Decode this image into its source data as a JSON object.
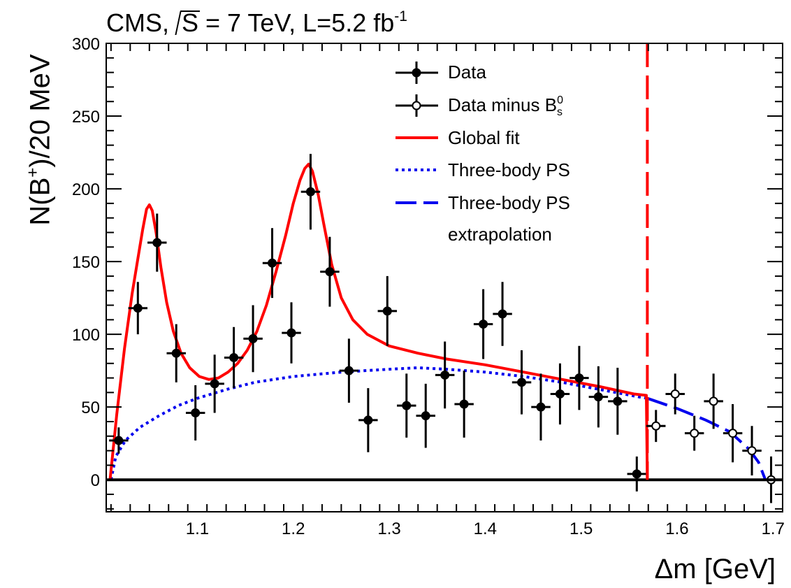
{
  "title": {
    "prefix": "CMS, ",
    "sqrt_arg": "S",
    "mid": " = 7 TeV, L=5.2 fb",
    "sup": "-1"
  },
  "ylabel": {
    "pre": "N(B",
    "sup": "+",
    "post": ")/20 MeV"
  },
  "xlabel": "Δm [GeV]",
  "legend": {
    "data": "Data",
    "data_minus": {
      "pre": "Data minus B",
      "sup": "0",
      "sub": "s"
    },
    "global_fit": "Global fit",
    "ps": "Three-body PS",
    "ps_extrap": "Three-body PS",
    "ps_extrap2": "extrapolation"
  },
  "colors": {
    "fit": "#ff0000",
    "ps": "#0000ee",
    "axis": "#000000"
  },
  "chart_data": {
    "type": "scatter",
    "xlim": [
      1.005,
      1.71
    ],
    "ylim": [
      -22,
      300
    ],
    "xticks": [
      "1.1",
      "1.2",
      "1.3",
      "1.4",
      "1.5",
      "1.6",
      "1.7"
    ],
    "yticks": [
      "0",
      "50",
      "100",
      "150",
      "200",
      "250",
      "300"
    ],
    "grid": false,
    "legend_position": "top-right",
    "threshold_line_x": 1.569,
    "data": [
      {
        "x": 1.018,
        "y": 27,
        "e": 9
      },
      {
        "x": 1.038,
        "y": 118,
        "e": 18
      },
      {
        "x": 1.058,
        "y": 163,
        "e": 20
      },
      {
        "x": 1.078,
        "y": 87,
        "e": 20
      },
      {
        "x": 1.098,
        "y": 46,
        "e": 19
      },
      {
        "x": 1.118,
        "y": 66,
        "e": 20
      },
      {
        "x": 1.138,
        "y": 84,
        "e": 21
      },
      {
        "x": 1.158,
        "y": 97,
        "e": 23
      },
      {
        "x": 1.178,
        "y": 149,
        "e": 24
      },
      {
        "x": 1.198,
        "y": 101,
        "e": 21
      },
      {
        "x": 1.218,
        "y": 198,
        "e": 26
      },
      {
        "x": 1.238,
        "y": 143,
        "e": 24
      },
      {
        "x": 1.258,
        "y": 75,
        "e": 22
      },
      {
        "x": 1.278,
        "y": 41,
        "e": 22
      },
      {
        "x": 1.298,
        "y": 116,
        "e": 24
      },
      {
        "x": 1.318,
        "y": 51,
        "e": 22
      },
      {
        "x": 1.338,
        "y": 44,
        "e": 22
      },
      {
        "x": 1.358,
        "y": 72,
        "e": 23
      },
      {
        "x": 1.378,
        "y": 52,
        "e": 23
      },
      {
        "x": 1.398,
        "y": 107,
        "e": 24
      },
      {
        "x": 1.418,
        "y": 114,
        "e": 22
      },
      {
        "x": 1.438,
        "y": 67,
        "e": 22
      },
      {
        "x": 1.458,
        "y": 50,
        "e": 23
      },
      {
        "x": 1.478,
        "y": 59,
        "e": 21
      },
      {
        "x": 1.498,
        "y": 70,
        "e": 22
      },
      {
        "x": 1.518,
        "y": 57,
        "e": 21
      },
      {
        "x": 1.538,
        "y": 54,
        "e": 23
      },
      {
        "x": 1.558,
        "y": 4,
        "e": 12
      }
    ],
    "data_minus": [
      {
        "x": 1.578,
        "y": 37,
        "e": 11
      },
      {
        "x": 1.598,
        "y": 59,
        "e": 14
      },
      {
        "x": 1.618,
        "y": 32,
        "e": 12
      },
      {
        "x": 1.638,
        "y": 54,
        "e": 19
      },
      {
        "x": 1.658,
        "y": 32,
        "e": 20
      },
      {
        "x": 1.678,
        "y": 20,
        "e": 17
      },
      {
        "x": 1.698,
        "y": 0,
        "e": 16
      }
    ],
    "global_fit": [
      [
        1.009,
        0
      ],
      [
        1.016,
        45
      ],
      [
        1.024,
        90
      ],
      [
        1.032,
        128
      ],
      [
        1.038,
        152
      ],
      [
        1.043,
        172
      ],
      [
        1.047,
        186
      ],
      [
        1.05,
        189
      ],
      [
        1.053,
        185
      ],
      [
        1.057,
        170
      ],
      [
        1.062,
        146
      ],
      [
        1.068,
        122
      ],
      [
        1.075,
        102
      ],
      [
        1.083,
        87
      ],
      [
        1.092,
        77
      ],
      [
        1.102,
        71
      ],
      [
        1.112,
        69
      ],
      [
        1.122,
        70
      ],
      [
        1.132,
        74
      ],
      [
        1.142,
        80
      ],
      [
        1.152,
        89
      ],
      [
        1.162,
        102
      ],
      [
        1.172,
        120
      ],
      [
        1.182,
        143
      ],
      [
        1.192,
        168
      ],
      [
        1.2,
        190
      ],
      [
        1.207,
        206
      ],
      [
        1.212,
        214
      ],
      [
        1.216,
        217
      ],
      [
        1.22,
        212
      ],
      [
        1.226,
        196
      ],
      [
        1.232,
        175
      ],
      [
        1.24,
        148
      ],
      [
        1.25,
        125
      ],
      [
        1.262,
        110
      ],
      [
        1.277,
        100
      ],
      [
        1.3,
        92
      ],
      [
        1.33,
        87
      ],
      [
        1.36,
        83
      ],
      [
        1.4,
        79
      ],
      [
        1.44,
        74
      ],
      [
        1.48,
        69
      ],
      [
        1.52,
        64
      ],
      [
        1.555,
        59
      ],
      [
        1.568,
        58
      ],
      [
        1.569,
        0
      ]
    ],
    "ps": [
      [
        1.01,
        0
      ],
      [
        1.015,
        16
      ],
      [
        1.025,
        27
      ],
      [
        1.04,
        36
      ],
      [
        1.06,
        44
      ],
      [
        1.08,
        51
      ],
      [
        1.1,
        56
      ],
      [
        1.13,
        62
      ],
      [
        1.16,
        67
      ],
      [
        1.2,
        71
      ],
      [
        1.25,
        74
      ],
      [
        1.3,
        76
      ],
      [
        1.33,
        77
      ],
      [
        1.36,
        76
      ],
      [
        1.4,
        74
      ],
      [
        1.44,
        71
      ],
      [
        1.48,
        67
      ],
      [
        1.52,
        62
      ],
      [
        1.56,
        57
      ],
      [
        1.569,
        56
      ]
    ],
    "ps_extrap": [
      [
        1.569,
        56
      ],
      [
        1.6,
        49
      ],
      [
        1.63,
        41
      ],
      [
        1.655,
        33
      ],
      [
        1.675,
        21
      ],
      [
        1.685,
        12
      ],
      [
        1.692,
        0
      ]
    ]
  }
}
